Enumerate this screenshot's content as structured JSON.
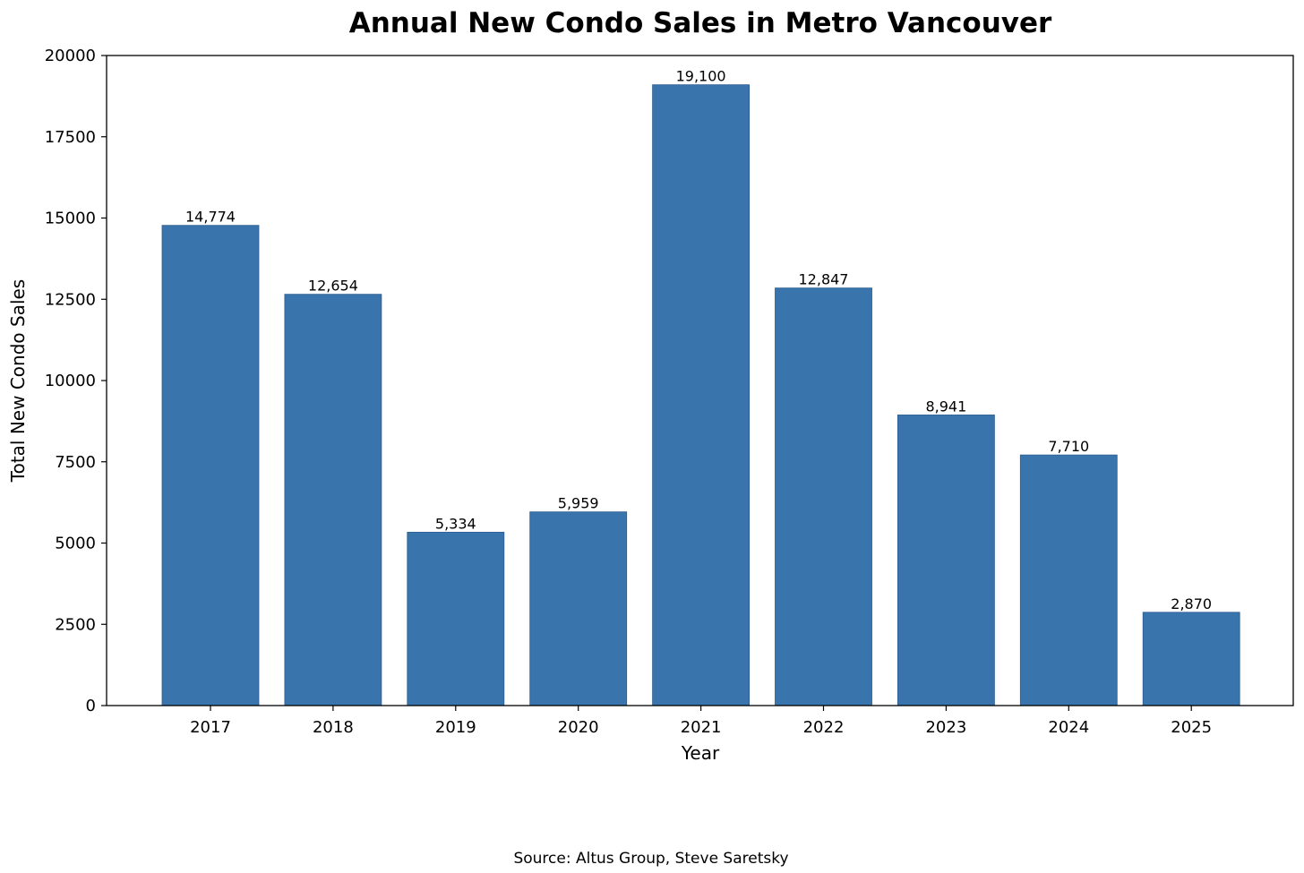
{
  "chart_data": {
    "type": "bar",
    "title": "Annual New Condo Sales in Metro Vancouver",
    "xlabel": "Year",
    "ylabel": "Total New Condo Sales",
    "categories": [
      "2017",
      "2018",
      "2019",
      "2020",
      "2021",
      "2022",
      "2023",
      "2024",
      "2025"
    ],
    "values": [
      14774,
      12654,
      5334,
      5959,
      19100,
      12847,
      8941,
      7710,
      2870
    ],
    "value_labels": [
      "14,774",
      "12,654",
      "5,334",
      "5,959",
      "19,100",
      "12,847",
      "8,941",
      "7,710",
      "2,870"
    ],
    "ylim": [
      0,
      20000
    ],
    "yticks": [
      0,
      2500,
      5000,
      7500,
      10000,
      12500,
      15000,
      17500,
      20000
    ],
    "grid": false,
    "bar_color": "#3A74AD",
    "source": "Source: Altus Group, Steve Saretsky"
  }
}
